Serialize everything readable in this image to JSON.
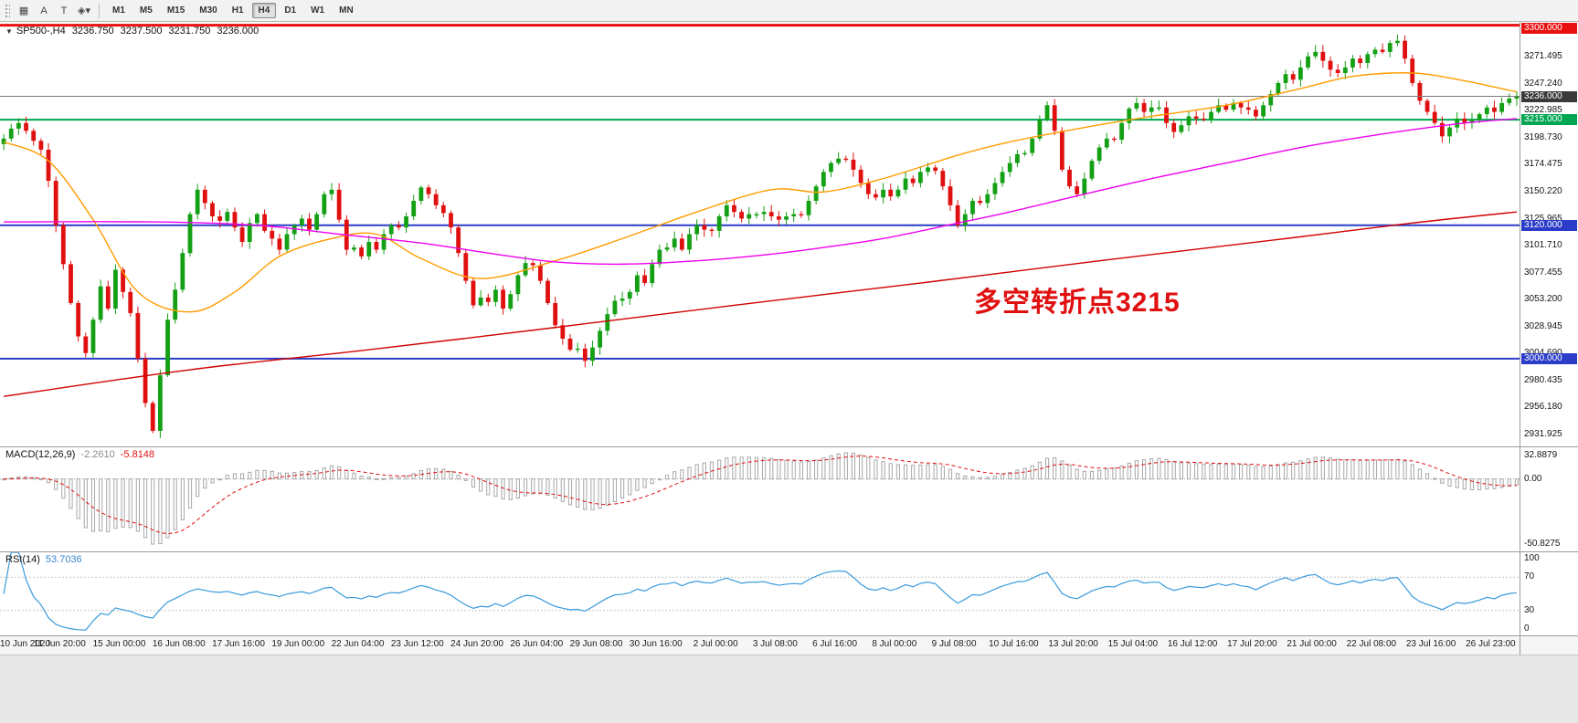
{
  "toolbar": {
    "tools": [
      {
        "name": "chart-grid-icon",
        "glyph": "▦"
      },
      {
        "name": "arrow-tool-icon",
        "glyph": "A"
      },
      {
        "name": "text-tool-icon",
        "glyph": "T"
      },
      {
        "name": "shapes-tool-icon",
        "glyph": "◈▾"
      }
    ],
    "timeframes": [
      {
        "label": "M1"
      },
      {
        "label": "M5"
      },
      {
        "label": "M15"
      },
      {
        "label": "M30"
      },
      {
        "label": "H1"
      },
      {
        "label": "H4",
        "active": true
      },
      {
        "label": "D1"
      },
      {
        "label": "W1"
      },
      {
        "label": "MN"
      }
    ]
  },
  "chart": {
    "dropdown_glyph": "▼",
    "symbol_label": "SP500-,H4",
    "open": "3236.750",
    "high": "3237.500",
    "low": "3231.750",
    "close": "3236.000",
    "annotation": {
      "text": "多空转折点3215",
      "color": "#e01010"
    },
    "hlines": [
      {
        "name": "resistance-3300",
        "price": 3300,
        "color": "#e81010",
        "width": 3,
        "badge": "3300.000",
        "badge_bg": "#e81010"
      },
      {
        "name": "current-price",
        "price": 3236,
        "color": "#787878",
        "width": 1,
        "badge": "3236.000",
        "badge_bg": "#3a3a3a"
      },
      {
        "name": "pivot-3215",
        "price": 3215,
        "color": "#00a651",
        "width": 2,
        "badge": "3215.000",
        "badge_bg": "#00a651"
      },
      {
        "name": "support-3120",
        "price": 3120,
        "color": "#2b3cc8",
        "width": 2,
        "badge": "3120.000",
        "badge_bg": "#2b3cc8"
      },
      {
        "name": "support-3000",
        "price": 3000,
        "color": "#2b3cc8",
        "width": 2,
        "badge": "3000.000",
        "badge_bg": "#2b3cc8"
      }
    ],
    "y_axis_labels": [
      "3295.750",
      "3271.495",
      "3247.240",
      "3222.985",
      "3198.730",
      "3174.475",
      "3150.220",
      "3125.965",
      "3101.710",
      "3077.455",
      "3053.200",
      "3028.945",
      "3004.690",
      "2980.435",
      "2956.180",
      "2931.925"
    ]
  },
  "chart_data": {
    "type": "candlestick",
    "symbol": "SP500-",
    "timeframe": "H4",
    "ylim": [
      2921,
      3303
    ],
    "up_color": "#14a014",
    "down_color": "#e01010",
    "first_open": 3193,
    "closes": [
      3198,
      3207,
      3212,
      3205,
      3196,
      3188,
      3160,
      3120,
      3085,
      3050,
      3020,
      3005,
      3035,
      3065,
      3045,
      3080,
      3060,
      3041,
      3000,
      2960,
      2935,
      2985,
      3035,
      3062,
      3095,
      3130,
      3152,
      3140,
      3128,
      3124,
      3132,
      3118,
      3105,
      3122,
      3130,
      3115,
      3108,
      3098,
      3112,
      3120,
      3126,
      3116,
      3130,
      3148,
      3152,
      3125,
      3098,
      3100,
      3092,
      3105,
      3098,
      3112,
      3120,
      3118,
      3128,
      3142,
      3154,
      3148,
      3138,
      3131,
      3118,
      3095,
      3070,
      3048,
      3055,
      3051,
      3062,
      3045,
      3058,
      3075,
      3086,
      3084,
      3070,
      3050,
      3030,
      3018,
      3008,
      3009,
      2998,
      3010,
      3025,
      3040,
      3052,
      3054,
      3060,
      3075,
      3068,
      3085,
      3098,
      3100,
      3108,
      3098,
      3112,
      3120,
      3116,
      3115,
      3128,
      3138,
      3132,
      3126,
      3130,
      3130,
      3132,
      3128,
      3125,
      3128,
      3130,
      3129,
      3142,
      3155,
      3168,
      3176,
      3180,
      3179,
      3170,
      3158,
      3148,
      3145,
      3152,
      3146,
      3152,
      3162,
      3158,
      3168,
      3172,
      3169,
      3155,
      3138,
      3120,
      3130,
      3142,
      3140,
      3148,
      3158,
      3168,
      3176,
      3184,
      3185,
      3198,
      3215,
      3228,
      3205,
      3170,
      3155,
      3148,
      3162,
      3178,
      3190,
      3198,
      3197,
      3212,
      3225,
      3230,
      3222,
      3226,
      3226,
      3212,
      3204,
      3210,
      3218,
      3216,
      3215,
      3222,
      3228,
      3224,
      3230,
      3226,
      3224,
      3218,
      3228,
      3238,
      3248,
      3256,
      3251,
      3262,
      3272,
      3276,
      3268,
      3260,
      3257,
      3262,
      3270,
      3266,
      3274,
      3278,
      3276,
      3284,
      3286,
      3270,
      3248,
      3232,
      3222,
      3212,
      3200,
      3208,
      3216,
      3212,
      3215,
      3220,
      3226,
      3222,
      3230,
      3234,
      3236
    ],
    "ma_lines": [
      {
        "name": "ma-fast",
        "color": "#ff9c00",
        "points": [
          [
            0,
            3195
          ],
          [
            6,
            3178
          ],
          [
            12,
            3125
          ],
          [
            18,
            3060
          ],
          [
            25,
            3042
          ],
          [
            31,
            3060
          ],
          [
            37,
            3092
          ],
          [
            44,
            3108
          ],
          [
            50,
            3112
          ],
          [
            56,
            3090
          ],
          [
            64,
            3072
          ],
          [
            74,
            3088
          ],
          [
            83,
            3108
          ],
          [
            93,
            3132
          ],
          [
            103,
            3152
          ],
          [
            110,
            3150
          ],
          [
            118,
            3162
          ],
          [
            128,
            3183
          ],
          [
            135,
            3195
          ],
          [
            145,
            3208
          ],
          [
            154,
            3218
          ],
          [
            164,
            3228
          ],
          [
            174,
            3243
          ],
          [
            181,
            3254
          ],
          [
            189,
            3257
          ],
          [
            196,
            3250
          ],
          [
            203,
            3240
          ]
        ]
      },
      {
        "name": "ma-mid",
        "color": "#f000f0",
        "points": [
          [
            0,
            3123
          ],
          [
            20,
            3123
          ],
          [
            34,
            3120
          ],
          [
            45,
            3112
          ],
          [
            56,
            3104
          ],
          [
            66,
            3094
          ],
          [
            74,
            3087
          ],
          [
            83,
            3085
          ],
          [
            93,
            3088
          ],
          [
            103,
            3094
          ],
          [
            110,
            3100
          ],
          [
            118,
            3108
          ],
          [
            128,
            3122
          ],
          [
            135,
            3132
          ],
          [
            145,
            3148
          ],
          [
            154,
            3162
          ],
          [
            164,
            3176
          ],
          [
            174,
            3190
          ],
          [
            181,
            3198
          ],
          [
            189,
            3206
          ],
          [
            196,
            3212
          ],
          [
            203,
            3216
          ]
        ]
      },
      {
        "name": "ma-slow",
        "color": "#d00000",
        "points": [
          [
            0,
            2966
          ],
          [
            25,
            2990
          ],
          [
            49,
            3008
          ],
          [
            74,
            3028
          ],
          [
            98,
            3048
          ],
          [
            123,
            3068
          ],
          [
            147,
            3088
          ],
          [
            172,
            3108
          ],
          [
            189,
            3122
          ],
          [
            203,
            3132
          ]
        ]
      }
    ]
  },
  "macd": {
    "label": "MACD(12,26,9)",
    "value_main": "-2.2610",
    "value_signal": "-5.8148",
    "params": {
      "fast": 12,
      "slow": 26,
      "signal": 9
    },
    "axis_labels": {
      "top": "32.8879",
      "zero": "0.00",
      "bottom": "-50.8275"
    },
    "histogram_color": "#a8a8a8",
    "signal_color": "#e01010"
  },
  "rsi": {
    "label": "RSI(14)",
    "value": "53.7036",
    "period": 14,
    "axis_labels": {
      "top": "100",
      "upper": "70",
      "lower": "30",
      "bottom": "0"
    },
    "levels": [
      70,
      30
    ],
    "line_color": "#3a9bdc"
  },
  "time_axis": {
    "labels": [
      {
        "t": "10 Jun 2020",
        "b": 0
      },
      {
        "t": "11 Jun 20:00",
        "b": 8
      },
      {
        "t": "15 Jun 00:00",
        "b": 16
      },
      {
        "t": "16 Jun 08:00",
        "b": 24
      },
      {
        "t": "17 Jun 16:00",
        "b": 32
      },
      {
        "t": "19 Jun 00:00",
        "b": 40
      },
      {
        "t": "22 Jun 04:00",
        "b": 48
      },
      {
        "t": "23 Jun 12:00",
        "b": 56
      },
      {
        "t": "24 Jun 20:00",
        "b": 64
      },
      {
        "t": "26 Jun 04:00",
        "b": 72
      },
      {
        "t": "29 Jun 08:00",
        "b": 80
      },
      {
        "t": "30 Jun 16:00",
        "b": 88
      },
      {
        "t": "2 Jul 00:00",
        "b": 96
      },
      {
        "t": "3 Jul 08:00",
        "b": 104
      },
      {
        "t": "6 Jul 16:00",
        "b": 112
      },
      {
        "t": "8 Jul 00:00",
        "b": 120
      },
      {
        "t": "9 Jul 08:00",
        "b": 128
      },
      {
        "t": "10 Jul 16:00",
        "b": 136
      },
      {
        "t": "13 Jul 20:00",
        "b": 144
      },
      {
        "t": "15 Jul 04:00",
        "b": 152
      },
      {
        "t": "16 Jul 12:00",
        "b": 160
      },
      {
        "t": "17 Jul 20:00",
        "b": 168
      },
      {
        "t": "21 Jul 00:00",
        "b": 176
      },
      {
        "t": "22 Jul 08:00",
        "b": 184
      },
      {
        "t": "23 Jul 16:00",
        "b": 192
      },
      {
        "t": "26 Jul 23:00",
        "b": 200
      }
    ]
  }
}
